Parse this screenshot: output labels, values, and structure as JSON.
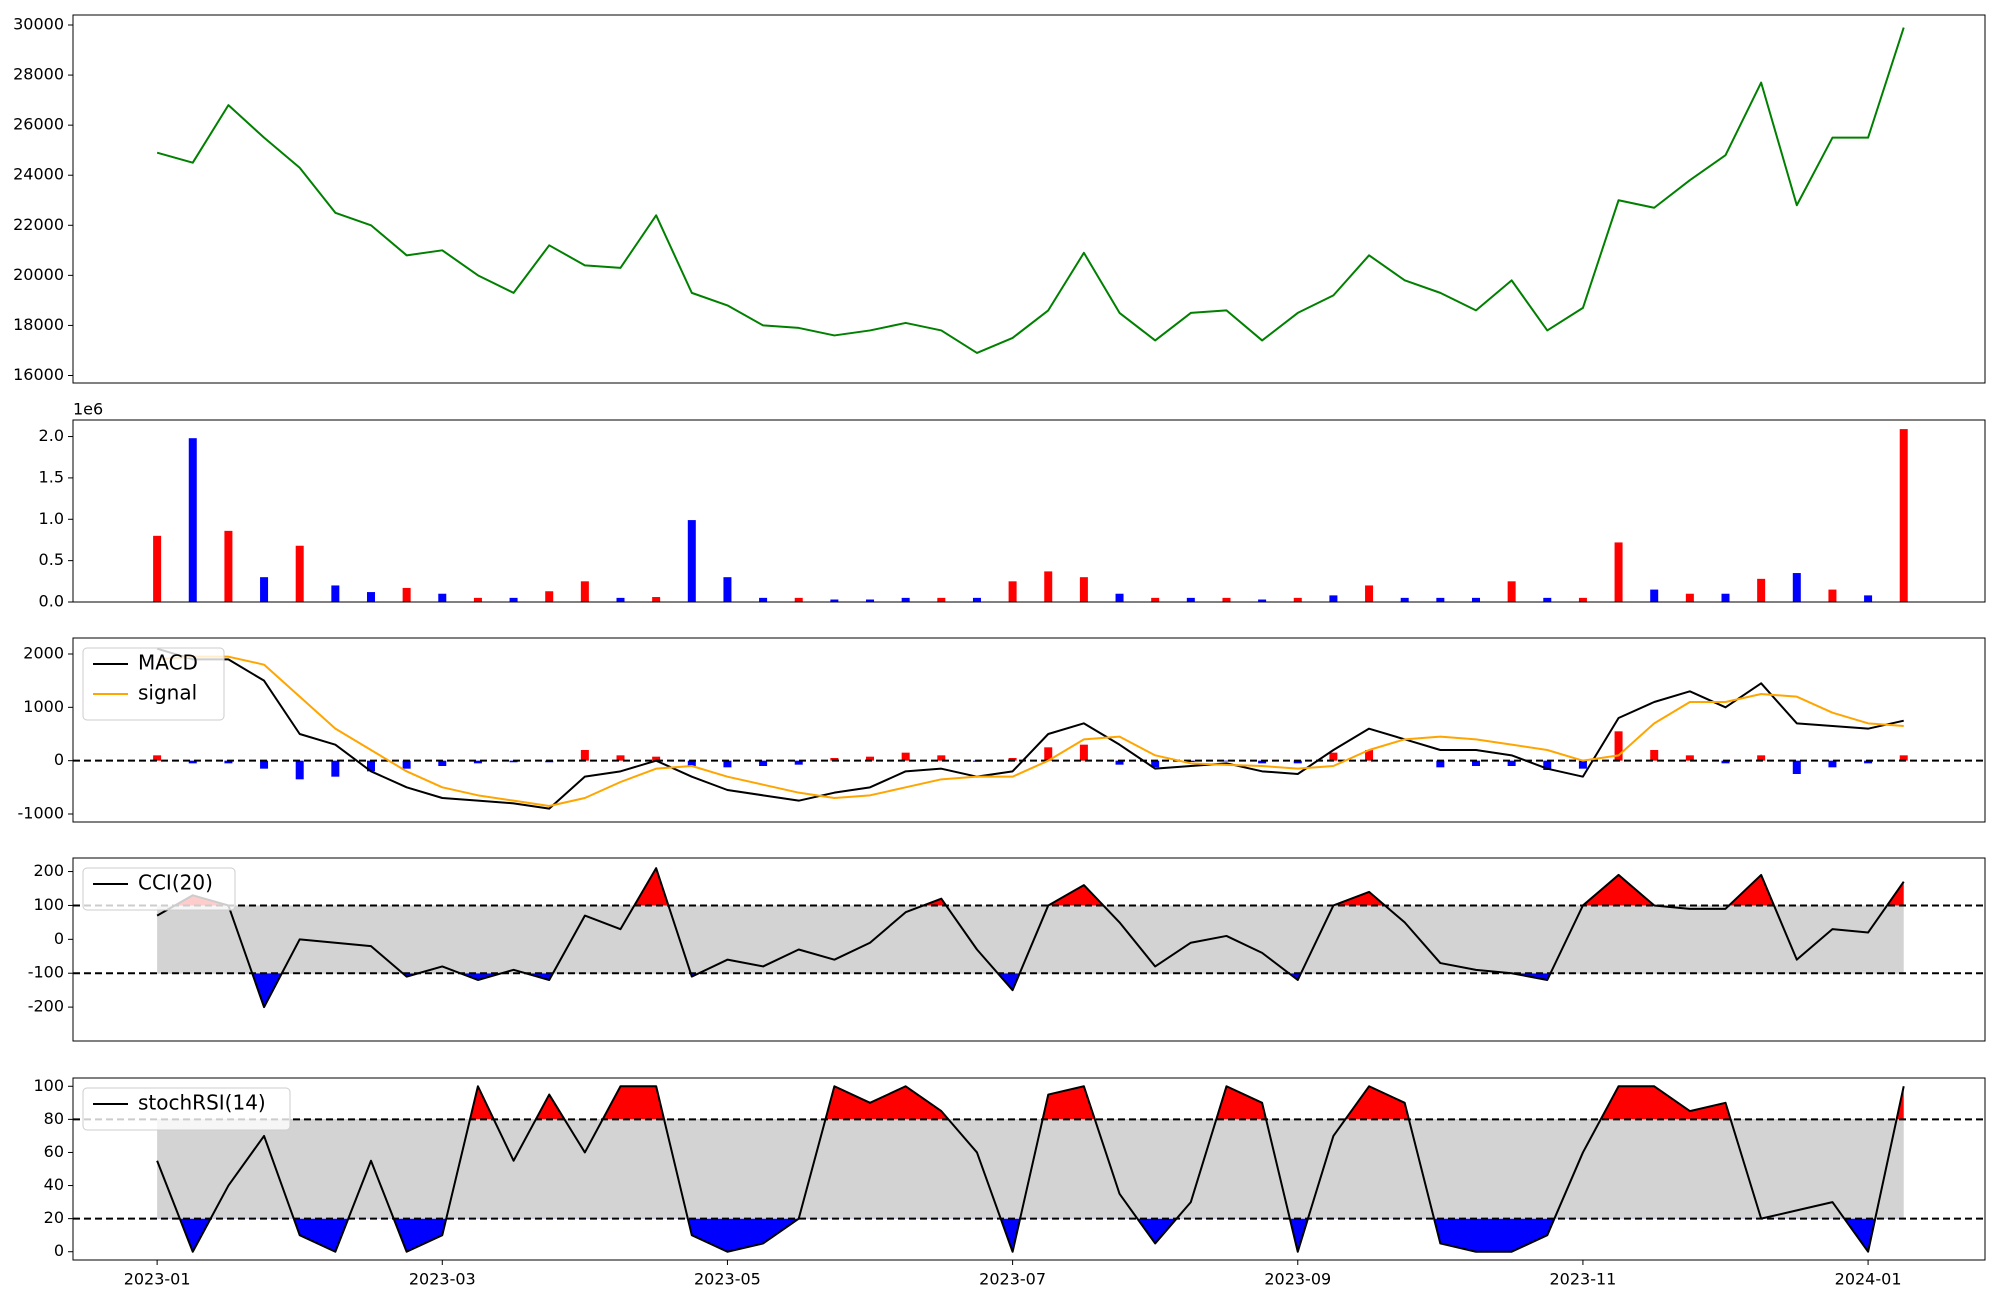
{
  "chart_data": [
    {
      "type": "line",
      "x": [
        0,
        0.25,
        0.5,
        0.75,
        1,
        1.25,
        1.5,
        1.75,
        2,
        2.25,
        2.5,
        2.75,
        3,
        3.25,
        3.5,
        3.75,
        4,
        4.25,
        4.5,
        4.75,
        5,
        5.25,
        5.5,
        5.75,
        6,
        6.25,
        6.5,
        6.75,
        7,
        7.25,
        7.5,
        7.75,
        8,
        8.25,
        8.5,
        8.75,
        9,
        9.25,
        9.5,
        9.75,
        10,
        10.25,
        10.5,
        10.75,
        11,
        11.25,
        11.5,
        11.75,
        12,
        12.25
      ],
      "series": [
        {
          "color": "green",
          "values": [
            24900,
            24500,
            26800,
            25500,
            24300,
            22500,
            22000,
            20800,
            21000,
            20000,
            19300,
            21200,
            20400,
            20300,
            22400,
            19300,
            18800,
            18000,
            17900,
            17600,
            17800,
            18100,
            17800,
            16900,
            17500,
            18600,
            20900,
            18500,
            17400,
            18500,
            18600,
            17400,
            18500,
            19200,
            20800,
            19800,
            19300,
            18600,
            19800,
            17800,
            18700,
            23000,
            22700,
            23800,
            24800,
            27700,
            22800,
            25500,
            25500,
            29900
          ]
        }
      ],
      "xlim": [
        -0.59,
        12.82
      ],
      "ylim": [
        15700,
        30400
      ],
      "yticks": [
        16000,
        18000,
        20000,
        22000,
        24000,
        26000,
        28000,
        30000
      ]
    },
    {
      "type": "bar",
      "x": [
        0,
        0.25,
        0.5,
        0.75,
        1,
        1.25,
        1.5,
        1.75,
        2,
        2.25,
        2.5,
        2.75,
        3,
        3.25,
        3.5,
        3.75,
        4,
        4.25,
        4.5,
        4.75,
        5,
        5.25,
        5.5,
        5.75,
        6,
        6.25,
        6.5,
        6.75,
        7,
        7.25,
        7.5,
        7.75,
        8,
        8.25,
        8.5,
        8.75,
        9,
        9.25,
        9.5,
        9.75,
        10,
        10.25,
        10.5,
        10.75,
        11,
        11.25,
        11.5,
        11.75,
        12,
        12.25
      ],
      "values": [
        0.8,
        1.98,
        0.86,
        0.3,
        0.68,
        0.2,
        0.12,
        0.17,
        0.1,
        0.05,
        0.05,
        0.13,
        0.25,
        0.05,
        0.06,
        0.99,
        0.3,
        0.05,
        0.05,
        0.03,
        0.03,
        0.05,
        0.05,
        0.05,
        0.25,
        0.37,
        0.3,
        0.1,
        0.05,
        0.05,
        0.05,
        0.03,
        0.05,
        0.08,
        0.2,
        0.05,
        0.05,
        0.05,
        0.25,
        0.05,
        0.05,
        0.72,
        0.15,
        0.1,
        0.1,
        0.28,
        0.35,
        0.15,
        0.08,
        2.09
      ],
      "colors": [
        "red",
        "blue",
        "red",
        "blue",
        "red",
        "blue",
        "blue",
        "red",
        "blue",
        "red",
        "blue",
        "red",
        "red",
        "blue",
        "red",
        "blue",
        "blue",
        "blue",
        "red",
        "blue",
        "blue",
        "blue",
        "red",
        "blue",
        "red",
        "red",
        "red",
        "blue",
        "red",
        "blue",
        "red",
        "blue",
        "red",
        "blue",
        "red",
        "blue",
        "blue",
        "blue",
        "red",
        "blue",
        "red",
        "red",
        "blue",
        "red",
        "blue",
        "red",
        "blue",
        "red",
        "blue",
        "red"
      ],
      "offset_label": "1e6",
      "xlim": [
        -0.59,
        12.82
      ],
      "ylim": [
        0,
        2.2
      ],
      "yticks": [
        {
          "value": 0,
          "label": "0.0"
        },
        {
          "value": 0.5,
          "label": "0.5"
        },
        {
          "value": 1,
          "label": "1.0"
        },
        {
          "value": 1.5,
          "label": "1.5"
        },
        {
          "value": 2,
          "label": "2.0"
        }
      ]
    },
    {
      "type": "macd",
      "x": [
        0,
        0.25,
        0.5,
        0.75,
        1,
        1.25,
        1.5,
        1.75,
        2,
        2.25,
        2.5,
        2.75,
        3,
        3.25,
        3.5,
        3.75,
        4,
        4.25,
        4.5,
        4.75,
        5,
        5.25,
        5.5,
        5.75,
        6,
        6.25,
        6.5,
        6.75,
        7,
        7.25,
        7.5,
        7.75,
        8,
        8.25,
        8.5,
        8.75,
        9,
        9.25,
        9.5,
        9.75,
        10,
        10.25,
        10.5,
        10.75,
        11,
        11.25,
        11.5,
        11.75,
        12,
        12.25
      ],
      "series": [
        {
          "name": "MACD",
          "color": "black",
          "values": [
            2100,
            1900,
            1900,
            1500,
            500,
            300,
            -200,
            -500,
            -700,
            -750,
            -800,
            -900,
            -300,
            -200,
            0,
            -300,
            -550,
            -650,
            -750,
            -600,
            -500,
            -200,
            -150,
            -300,
            -200,
            500,
            700,
            300,
            -150,
            -100,
            -50,
            -200,
            -250,
            200,
            600,
            400,
            200,
            200,
            100,
            -150,
            -300,
            800,
            1100,
            1300,
            1000,
            1450,
            700,
            650,
            600,
            750
          ]
        },
        {
          "name": "signal",
          "color": "orange",
          "values": [
            1900,
            1950,
            1950,
            1800,
            1200,
            600,
            200,
            -200,
            -500,
            -650,
            -750,
            -850,
            -700,
            -400,
            -150,
            -100,
            -300,
            -450,
            -600,
            -700,
            -650,
            -500,
            -350,
            -300,
            -300,
            0,
            400,
            450,
            100,
            -50,
            -80,
            -100,
            -150,
            -100,
            200,
            400,
            450,
            400,
            300,
            200,
            0,
            100,
            700,
            1100,
            1100,
            1250,
            1200,
            900,
            700,
            650
          ]
        }
      ],
      "histogram": [
        100,
        -50,
        -50,
        -150,
        -350,
        -300,
        -200,
        -150,
        -100,
        -50,
        -30,
        -30,
        200,
        100,
        75,
        -100,
        -125,
        -100,
        -75,
        50,
        75,
        150,
        100,
        -20,
        50,
        250,
        300,
        -75,
        -125,
        -25,
        -15,
        -50,
        -50,
        150,
        200,
        0,
        -125,
        -100,
        -100,
        -175,
        -150,
        550,
        200,
        100,
        -50,
        100,
        -250,
        -125,
        -50,
        100
      ],
      "histogram_colors": {
        "positive": "red",
        "negative": "blue"
      },
      "levels": [
        0
      ],
      "legend": "upper left",
      "xlim": [
        -0.59,
        12.82
      ],
      "ylim": [
        -1150,
        2300
      ],
      "yticks": [
        -1000,
        0,
        1000,
        2000
      ]
    },
    {
      "type": "oscillator",
      "x": [
        0,
        0.25,
        0.5,
        0.75,
        1,
        1.25,
        1.5,
        1.75,
        2,
        2.25,
        2.5,
        2.75,
        3,
        3.25,
        3.5,
        3.75,
        4,
        4.25,
        4.5,
        4.75,
        5,
        5.25,
        5.5,
        5.75,
        6,
        6.25,
        6.5,
        6.75,
        7,
        7.25,
        7.5,
        7.75,
        8,
        8.25,
        8.5,
        8.75,
        9,
        9.25,
        9.5,
        9.75,
        10,
        10.25,
        10.5,
        10.75,
        11,
        11.25,
        11.5,
        11.75,
        12,
        12.25
      ],
      "series": [
        {
          "name": "CCI(20)",
          "color": "black",
          "values": [
            70,
            130,
            100,
            -200,
            0,
            -10,
            -20,
            -110,
            -80,
            -120,
            -90,
            -120,
            70,
            30,
            210,
            -110,
            -60,
            -80,
            -30,
            -60,
            -10,
            80,
            120,
            -30,
            -150,
            100,
            160,
            50,
            -80,
            -10,
            10,
            -40,
            -120,
            100,
            140,
            50,
            -70,
            -90,
            -100,
            -120,
            100,
            190,
            100,
            90,
            90,
            190,
            -60,
            30,
            20,
            170
          ]
        }
      ],
      "levels": [
        -100,
        100
      ],
      "band_color": "lightgray",
      "above_color": "red",
      "below_color": "blue",
      "legend": "upper left",
      "xlim": [
        -0.59,
        12.82
      ],
      "ylim": [
        -300,
        240
      ],
      "yticks": [
        -200,
        -100,
        0,
        100,
        200
      ]
    },
    {
      "type": "oscillator",
      "x": [
        0,
        0.25,
        0.5,
        0.75,
        1,
        1.25,
        1.5,
        1.75,
        2,
        2.25,
        2.5,
        2.75,
        3,
        3.25,
        3.5,
        3.75,
        4,
        4.25,
        4.5,
        4.75,
        5,
        5.25,
        5.5,
        5.75,
        6,
        6.25,
        6.5,
        6.75,
        7,
        7.25,
        7.5,
        7.75,
        8,
        8.25,
        8.5,
        8.75,
        9,
        9.25,
        9.5,
        9.75,
        10,
        10.25,
        10.5,
        10.75,
        11,
        11.25,
        11.5,
        11.75,
        12,
        12.25
      ],
      "series": [
        {
          "name": "stochRSI(14)",
          "color": "black",
          "values": [
            55,
            0,
            40,
            70,
            10,
            0,
            55,
            0,
            10,
            100,
            55,
            95,
            60,
            100,
            100,
            10,
            0,
            5,
            20,
            100,
            90,
            100,
            85,
            60,
            0,
            95,
            100,
            35,
            5,
            30,
            100,
            90,
            0,
            70,
            100,
            90,
            5,
            0,
            0,
            10,
            60,
            100,
            100,
            85,
            90,
            20,
            25,
            30,
            0,
            100
          ]
        }
      ],
      "levels": [
        20,
        80
      ],
      "band_color": "lightgray",
      "above_color": "red",
      "below_color": "blue",
      "legend": "upper left",
      "xlim": [
        -0.59,
        12.82
      ],
      "ylim": [
        -5,
        105
      ],
      "yticks": [
        0,
        20,
        40,
        60,
        80,
        100
      ],
      "xticks": [
        {
          "value": 0,
          "label": "2023-01"
        },
        {
          "value": 2,
          "label": "2023-03"
        },
        {
          "value": 4,
          "label": "2023-05"
        },
        {
          "value": 6,
          "label": "2023-07"
        },
        {
          "value": 8,
          "label": "2023-09"
        },
        {
          "value": 10,
          "label": "2023-11"
        },
        {
          "value": 12,
          "label": "2024-01"
        }
      ]
    }
  ]
}
